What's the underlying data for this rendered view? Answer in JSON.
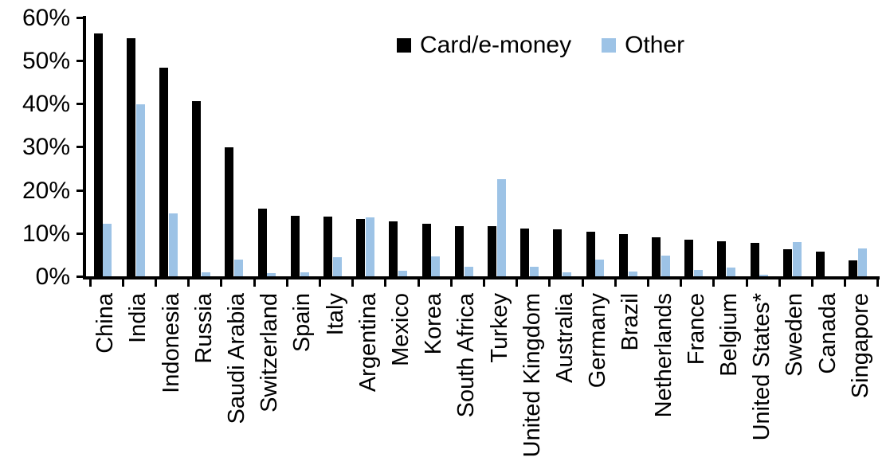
{
  "chart_data": {
    "type": "bar",
    "title": "",
    "xlabel": "",
    "ylabel": "",
    "categories": [
      "China",
      "India",
      "Indonesia",
      "Russia",
      "Saudi Arabia",
      "Switzerland",
      "Spain",
      "Italy",
      "Argentina",
      "Mexico",
      "Korea",
      "South Africa",
      "Turkey",
      "United Kingdom",
      "Australia",
      "Germany",
      "Brazil",
      "Netherlands",
      "France",
      "Belgium",
      "United States*",
      "Sweden",
      "Canada",
      "Singapore"
    ],
    "series": [
      {
        "name": "Card/e-money",
        "color": "#000000",
        "values": [
          56.3,
          55.1,
          48.4,
          40.6,
          29.8,
          15.6,
          14.1,
          13.9,
          13.3,
          12.8,
          12.2,
          11.7,
          11.6,
          11.0,
          10.8,
          10.4,
          9.8,
          9.1,
          8.5,
          8.1,
          7.7,
          6.3,
          5.7,
          3.6
        ]
      },
      {
        "name": "Other",
        "color": "#9DC3E6",
        "values": [
          12.2,
          39.8,
          14.5,
          1.0,
          3.8,
          0.8,
          0.9,
          4.5,
          13.7,
          1.2,
          4.6,
          2.3,
          22.5,
          2.2,
          1.0,
          3.8,
          1.1,
          4.8,
          1.5,
          2.0,
          0.4,
          7.9,
          0.0,
          6.5
        ]
      }
    ],
    "y_axis": {
      "min": 0,
      "max": 60,
      "step": 10,
      "unit": "%",
      "tick_labels": [
        "0%",
        "10%",
        "20%",
        "30%",
        "40%",
        "50%",
        "60%"
      ]
    },
    "legend_position": "top-center",
    "grid": false
  }
}
